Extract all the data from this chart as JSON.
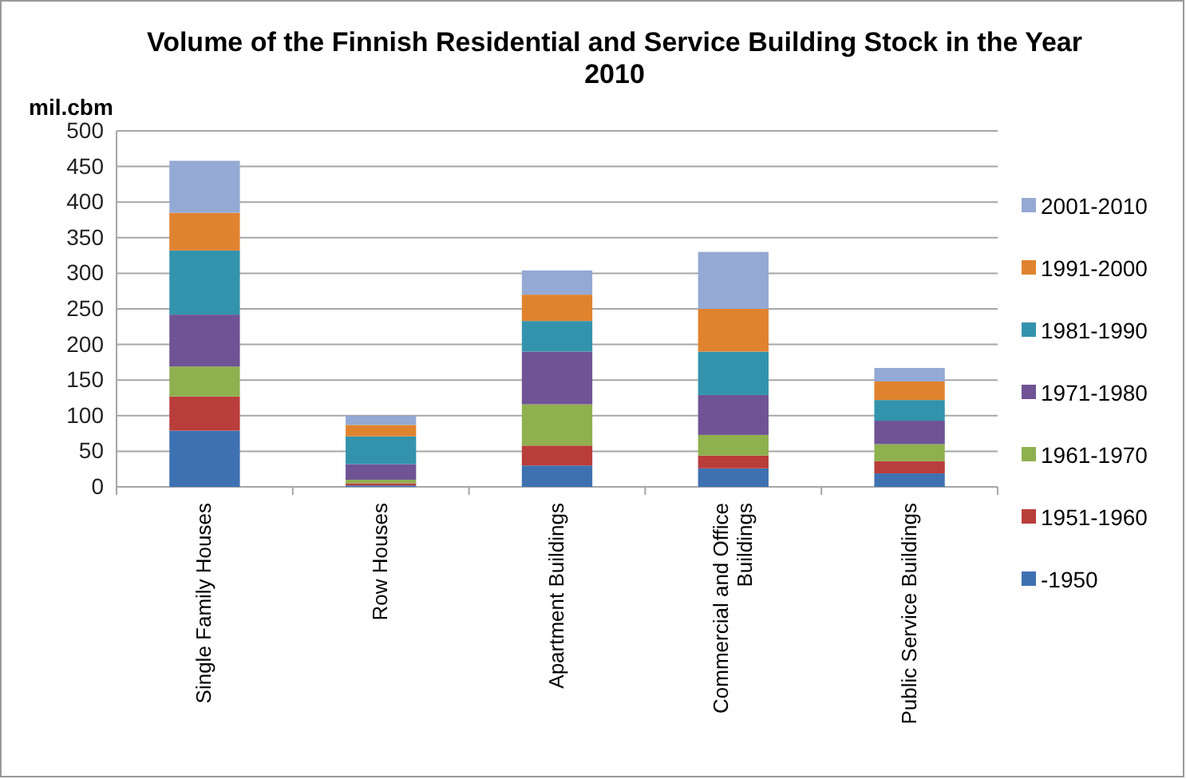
{
  "chart_data": {
    "type": "bar",
    "stacked": true,
    "title": "Volume of the Finnish Residential and Service Building Stock in the Year 2010",
    "ylabel": "mil.cbm",
    "categories": [
      "Single Family Houses",
      "Row Houses",
      "Apartment Buildings",
      "Commercial and Office Buildings",
      "Public Service Buildings"
    ],
    "series": [
      {
        "name": "-1950",
        "color": "#3e71b1",
        "values": [
          79,
          2,
          30,
          26,
          19
        ]
      },
      {
        "name": "1951-1960",
        "color": "#b93d3b",
        "values": [
          48,
          3,
          28,
          18,
          17
        ]
      },
      {
        "name": "1961-1970",
        "color": "#8fb04f",
        "values": [
          42,
          5,
          58,
          29,
          24
        ]
      },
      {
        "name": "1971-1980",
        "color": "#6f5394",
        "values": [
          73,
          22,
          74,
          56,
          33
        ]
      },
      {
        "name": "1981-1990",
        "color": "#3393ad",
        "values": [
          90,
          39,
          43,
          61,
          29
        ]
      },
      {
        "name": "1991-2000",
        "color": "#e0832f",
        "values": [
          53,
          16,
          37,
          60,
          26
        ]
      },
      {
        "name": "2001-2010",
        "color": "#94a9d3",
        "values": [
          73,
          13,
          34,
          80,
          19
        ]
      }
    ],
    "ylim": [
      0,
      500
    ],
    "yticks": [
      0,
      50,
      100,
      150,
      200,
      250,
      300,
      350,
      400,
      450,
      500
    ],
    "grid": "y",
    "legend": "right"
  }
}
